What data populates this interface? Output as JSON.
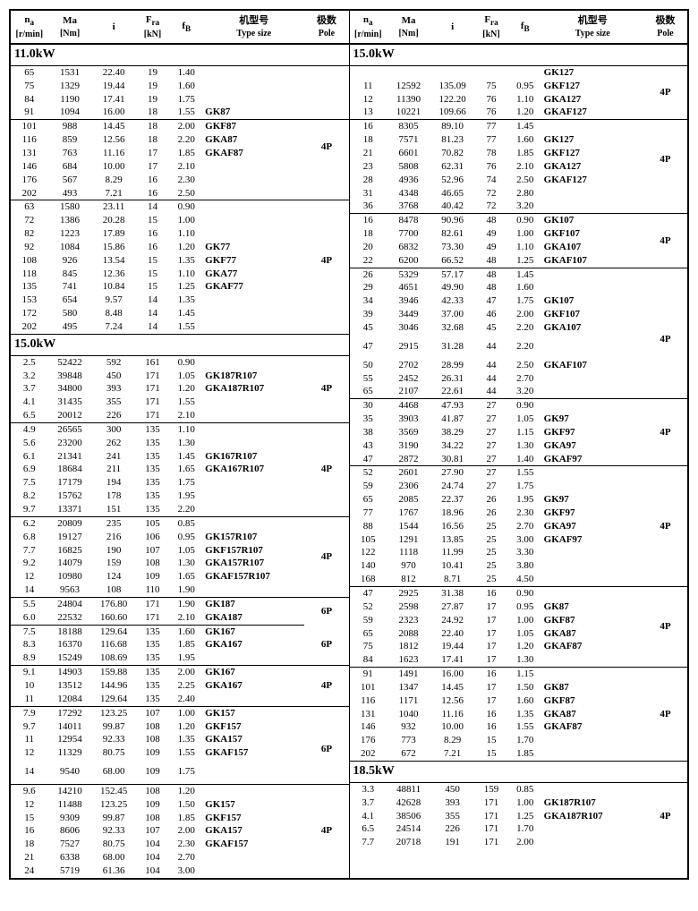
{
  "headers": {
    "na": "n<sub>a</sub>",
    "na_unit": "[r/min]",
    "ma": "Ma",
    "ma_unit": "[Nm]",
    "i": "i",
    "fra": "F<sub>ra</sub>",
    "fra_unit": "[kN]",
    "fb": "f<sub>B</sub>",
    "ts": "机型号",
    "ts2": "Type size",
    "pole": "极数",
    "pole2": "Pole"
  },
  "left": [
    {
      "section": "11.0kW"
    },
    {
      "r": [
        "65",
        "1531",
        "22.40",
        "19",
        "1.40",
        "",
        ""
      ]
    },
    {
      "r": [
        "75",
        "1329",
        "19.44",
        "19",
        "1.60",
        "",
        ""
      ]
    },
    {
      "r": [
        "84",
        "1190",
        "17.41",
        "19",
        "1.75",
        "",
        ""
      ]
    },
    {
      "r": [
        "91",
        "1094",
        "16.00",
        "18",
        "1.55",
        "GK87",
        ""
      ],
      "rule": 1
    },
    {
      "r": [
        "101",
        "988",
        "14.45",
        "18",
        "2.00",
        "GKF87",
        ""
      ],
      "pole": "4P",
      "poleSpan": 4
    },
    {
      "r": [
        "116",
        "859",
        "12.56",
        "18",
        "2.20",
        "GKA87",
        ""
      ]
    },
    {
      "r": [
        "131",
        "763",
        "11.16",
        "17",
        "1.85",
        "GKAF87",
        ""
      ]
    },
    {
      "r": [
        "146",
        "684",
        "10.00",
        "17",
        "2.10",
        "",
        ""
      ]
    },
    {
      "r": [
        "176",
        "567",
        "8.29",
        "16",
        "2.30",
        "",
        ""
      ]
    },
    {
      "r": [
        "202",
        "493",
        "7.21",
        "16",
        "2.50",
        "",
        ""
      ],
      "rule": 1
    },
    {
      "r": [
        "63",
        "1580",
        "23.11",
        "14",
        "0.90",
        "",
        ""
      ]
    },
    {
      "r": [
        "72",
        "1386",
        "20.28",
        "15",
        "1.00",
        "",
        ""
      ]
    },
    {
      "r": [
        "82",
        "1223",
        "17.89",
        "16",
        "1.10",
        "",
        ""
      ]
    },
    {
      "r": [
        "92",
        "1084",
        "15.86",
        "16",
        "1.20",
        "GK77",
        ""
      ]
    },
    {
      "r": [
        "108",
        "926",
        "13.54",
        "15",
        "1.35",
        "GKF77",
        ""
      ],
      "pole": "4P",
      "poleSpan": 1
    },
    {
      "r": [
        "118",
        "845",
        "12.36",
        "15",
        "1.10",
        "GKA77",
        ""
      ]
    },
    {
      "r": [
        "135",
        "741",
        "10.84",
        "15",
        "1.25",
        "GKAF77",
        ""
      ]
    },
    {
      "r": [
        "153",
        "654",
        "9.57",
        "14",
        "1.35",
        "",
        ""
      ]
    },
    {
      "r": [
        "172",
        "580",
        "8.48",
        "14",
        "1.45",
        "",
        ""
      ]
    },
    {
      "r": [
        "202",
        "495",
        "7.24",
        "14",
        "1.55",
        "",
        ""
      ]
    },
    {
      "section": "15.0kW"
    },
    {
      "r": [
        "2.5",
        "52422",
        "592",
        "161",
        "0.90",
        "",
        ""
      ]
    },
    {
      "r": [
        "3.2",
        "39848",
        "450",
        "171",
        "1.05",
        "GK187R107",
        ""
      ]
    },
    {
      "r": [
        "3.7",
        "34800",
        "393",
        "171",
        "1.20",
        "GKA187R107",
        ""
      ],
      "pole": "4P",
      "poleSpan": 1
    },
    {
      "r": [
        "4.1",
        "31435",
        "355",
        "171",
        "1.55",
        "",
        ""
      ]
    },
    {
      "r": [
        "6.5",
        "20012",
        "226",
        "171",
        "2.10",
        "",
        ""
      ],
      "rule": 1
    },
    {
      "r": [
        "4.9",
        "26565",
        "300",
        "135",
        "1.10",
        "",
        ""
      ]
    },
    {
      "r": [
        "5.6",
        "23200",
        "262",
        "135",
        "1.30",
        "",
        ""
      ]
    },
    {
      "r": [
        "6.1",
        "21341",
        "241",
        "135",
        "1.45",
        "GK167R107",
        ""
      ]
    },
    {
      "r": [
        "6.9",
        "18684",
        "211",
        "135",
        "1.65",
        "GKA167R107",
        ""
      ],
      "pole": "4P",
      "poleSpan": 1
    },
    {
      "r": [
        "7.5",
        "17179",
        "194",
        "135",
        "1.75",
        "",
        ""
      ]
    },
    {
      "r": [
        "8.2",
        "15762",
        "178",
        "135",
        "1.95",
        "",
        ""
      ]
    },
    {
      "r": [
        "9.7",
        "13371",
        "151",
        "135",
        "2.20",
        "",
        ""
      ],
      "rule": 1
    },
    {
      "r": [
        "6.2",
        "20809",
        "235",
        "105",
        "0.85",
        "",
        ""
      ]
    },
    {
      "r": [
        "6.8",
        "19127",
        "216",
        "106",
        "0.95",
        "GK157R107",
        ""
      ]
    },
    {
      "r": [
        "7.7",
        "16825",
        "190",
        "107",
        "1.05",
        "GKF157R107",
        ""
      ],
      "pole": "4P",
      "poleSpan": 2
    },
    {
      "r": [
        "9.2",
        "14079",
        "159",
        "108",
        "1.30",
        "GKA157R107",
        ""
      ]
    },
    {
      "r": [
        "12",
        "10980",
        "124",
        "109",
        "1.65",
        "GKAF157R107",
        ""
      ]
    },
    {
      "r": [
        "14",
        "9563",
        "108",
        "110",
        "1.90",
        "",
        ""
      ],
      "rule": 1
    },
    {
      "r": [
        "5.5",
        "24804",
        "176.80",
        "171",
        "1.90",
        "GK187",
        ""
      ],
      "pole": "6P",
      "poleSpan": 2
    },
    {
      "r": [
        "6.0",
        "22532",
        "160.60",
        "171",
        "2.10",
        "GKA187",
        ""
      ],
      "rule": 1
    },
    {
      "r": [
        "7.5",
        "18188",
        "129.64",
        "135",
        "1.60",
        "GK167",
        ""
      ]
    },
    {
      "r": [
        "8.3",
        "16370",
        "116.68",
        "135",
        "1.85",
        "GKA167",
        ""
      ],
      "pole": "6P",
      "poleSpan": 1
    },
    {
      "r": [
        "8.9",
        "15249",
        "108.69",
        "135",
        "1.95",
        "",
        ""
      ],
      "rule": 1
    },
    {
      "r": [
        "9.1",
        "14903",
        "159.88",
        "135",
        "2.00",
        "GK167",
        ""
      ]
    },
    {
      "r": [
        "10",
        "13512",
        "144.96",
        "135",
        "2.25",
        "GKA167",
        ""
      ],
      "pole": "4P",
      "poleSpan": 1
    },
    {
      "r": [
        "11",
        "12084",
        "129.64",
        "135",
        "2.40",
        "",
        ""
      ],
      "rule": 1
    },
    {
      "r": [
        "7.9",
        "17292",
        "123.25",
        "107",
        "1.00",
        "GK157",
        ""
      ]
    },
    {
      "r": [
        "9.7",
        "14011",
        "99.87",
        "108",
        "1.20",
        "GKF157",
        ""
      ]
    },
    {
      "r": [
        "11",
        "12954",
        "92.33",
        "108",
        "1.35",
        "GKA157",
        ""
      ],
      "pole": "6P",
      "poleSpan": 2
    },
    {
      "r": [
        "12",
        "11329",
        "80.75",
        "109",
        "1.55",
        "GKAF157",
        ""
      ],
      "pad": 1
    },
    {
      "r": [
        "14",
        "9540",
        "68.00",
        "109",
        "1.75",
        "",
        ""
      ],
      "rule": 1,
      "pad": 1
    },
    {
      "r": [
        "9.6",
        "14210",
        "152.45",
        "108",
        "1.20",
        "",
        ""
      ]
    },
    {
      "r": [
        "12",
        "11488",
        "123.25",
        "109",
        "1.50",
        "GK157",
        ""
      ]
    },
    {
      "r": [
        "15",
        "9309",
        "99.87",
        "108",
        "1.85",
        "GKF157",
        ""
      ]
    },
    {
      "r": [
        "16",
        "8606",
        "92.33",
        "107",
        "2.00",
        "GKA157",
        ""
      ],
      "pole": "4P",
      "poleSpan": 1
    },
    {
      "r": [
        "18",
        "7527",
        "80.75",
        "104",
        "2.30",
        "GKAF157",
        ""
      ]
    },
    {
      "r": [
        "21",
        "6338",
        "68.00",
        "104",
        "2.70",
        "",
        ""
      ]
    },
    {
      "r": [
        "24",
        "5719",
        "61.36",
        "104",
        "3.00",
        "",
        ""
      ]
    }
  ],
  "right": [
    {
      "section": "15.0kW"
    },
    {
      "r": [
        "",
        "",
        "",
        "",
        "",
        "GK127",
        ""
      ]
    },
    {
      "r": [
        "11",
        "12592",
        "135.09",
        "75",
        "0.95",
        "GKF127",
        ""
      ],
      "pole": "4P",
      "poleSpan": 2
    },
    {
      "r": [
        "12",
        "11390",
        "122.20",
        "76",
        "1.10",
        "GKA127",
        ""
      ]
    },
    {
      "r": [
        "13",
        "10221",
        "109.66",
        "76",
        "1.20",
        "GKAF127",
        ""
      ],
      "rule": 1
    },
    {
      "r": [
        "16",
        "8305",
        "89.10",
        "77",
        "1.45",
        "",
        ""
      ]
    },
    {
      "r": [
        "18",
        "7571",
        "81.23",
        "77",
        "1.60",
        "GK127",
        ""
      ]
    },
    {
      "r": [
        "21",
        "6601",
        "70.82",
        "78",
        "1.85",
        "GKF127",
        ""
      ],
      "pole": "4P",
      "poleSpan": 2
    },
    {
      "r": [
        "23",
        "5808",
        "62.31",
        "76",
        "2.10",
        "GKA127",
        ""
      ]
    },
    {
      "r": [
        "28",
        "4936",
        "52.96",
        "74",
        "2.50",
        "GKAF127",
        ""
      ]
    },
    {
      "r": [
        "31",
        "4348",
        "46.65",
        "72",
        "2.80",
        "",
        ""
      ]
    },
    {
      "r": [
        "36",
        "3768",
        "40.42",
        "72",
        "3.20",
        "",
        ""
      ],
      "rule": 1
    },
    {
      "r": [
        "16",
        "8478",
        "90.96",
        "48",
        "0.90",
        "GK107",
        ""
      ]
    },
    {
      "r": [
        "18",
        "7700",
        "82.61",
        "49",
        "1.00",
        "GKF107",
        ""
      ],
      "pole": "4P",
      "poleSpan": 2
    },
    {
      "r": [
        "20",
        "6832",
        "73.30",
        "49",
        "1.10",
        "GKA107",
        ""
      ]
    },
    {
      "r": [
        "22",
        "6200",
        "66.52",
        "48",
        "1.25",
        "GKAF107",
        ""
      ],
      "rule": 1
    },
    {
      "r": [
        "26",
        "5329",
        "57.17",
        "48",
        "1.45",
        "",
        ""
      ]
    },
    {
      "r": [
        "29",
        "4651",
        "49.90",
        "48",
        "1.60",
        "",
        ""
      ]
    },
    {
      "r": [
        "34",
        "3946",
        "42.33",
        "47",
        "1.75",
        "GK107",
        ""
      ]
    },
    {
      "r": [
        "39",
        "3449",
        "37.00",
        "46",
        "2.00",
        "GKF107",
        ""
      ]
    },
    {
      "r": [
        "45",
        "3046",
        "32.68",
        "45",
        "2.20",
        "GKA107",
        ""
      ],
      "pole": "4P",
      "poleSpan": 2,
      "pad": 1
    },
    {
      "r": [
        "47",
        "2915",
        "31.28",
        "44",
        "2.20",
        "",
        ""
      ],
      "pad": 1
    },
    {
      "r": [
        "50",
        "2702",
        "28.99",
        "44",
        "2.50",
        "GKAF107",
        ""
      ]
    },
    {
      "r": [
        "55",
        "2452",
        "26.31",
        "44",
        "2.70",
        "",
        ""
      ]
    },
    {
      "r": [
        "65",
        "2107",
        "22.61",
        "44",
        "3.20",
        "",
        ""
      ],
      "rule": 1
    },
    {
      "r": [
        "30",
        "4468",
        "47.93",
        "27",
        "0.90",
        "",
        ""
      ]
    },
    {
      "r": [
        "35",
        "3903",
        "41.87",
        "27",
        "1.05",
        "GK97",
        ""
      ]
    },
    {
      "r": [
        "38",
        "3569",
        "38.29",
        "27",
        "1.15",
        "GKF97",
        ""
      ],
      "pole": "4P",
      "poleSpan": 1
    },
    {
      "r": [
        "43",
        "3190",
        "34.22",
        "27",
        "1.30",
        "GKA97",
        ""
      ]
    },
    {
      "r": [
        "47",
        "2872",
        "30.81",
        "27",
        "1.40",
        "GKAF97",
        ""
      ],
      "rule": 1
    },
    {
      "r": [
        "52",
        "2601",
        "27.90",
        "27",
        "1.55",
        "",
        ""
      ]
    },
    {
      "r": [
        "59",
        "2306",
        "24.74",
        "27",
        "1.75",
        "",
        ""
      ]
    },
    {
      "r": [
        "65",
        "2085",
        "22.37",
        "26",
        "1.95",
        "GK97",
        ""
      ]
    },
    {
      "r": [
        "77",
        "1767",
        "18.96",
        "26",
        "2.30",
        "GKF97",
        ""
      ]
    },
    {
      "r": [
        "88",
        "1544",
        "16.56",
        "25",
        "2.70",
        "GKA97",
        ""
      ],
      "pole": "4P",
      "poleSpan": 1
    },
    {
      "r": [
        "105",
        "1291",
        "13.85",
        "25",
        "3.00",
        "GKAF97",
        ""
      ]
    },
    {
      "r": [
        "122",
        "1118",
        "11.99",
        "25",
        "3.30",
        "",
        ""
      ]
    },
    {
      "r": [
        "140",
        "970",
        "10.41",
        "25",
        "3.80",
        "",
        ""
      ]
    },
    {
      "r": [
        "168",
        "812",
        "8.71",
        "25",
        "4.50",
        "",
        ""
      ],
      "rule": 1
    },
    {
      "r": [
        "47",
        "2925",
        "31.38",
        "16",
        "0.90",
        "",
        ""
      ]
    },
    {
      "r": [
        "52",
        "2598",
        "27.87",
        "17",
        "0.95",
        "GK87",
        ""
      ]
    },
    {
      "r": [
        "59",
        "2323",
        "24.92",
        "17",
        "1.00",
        "GKF87",
        ""
      ],
      "pole": "4P",
      "poleSpan": 2
    },
    {
      "r": [
        "65",
        "2088",
        "22.40",
        "17",
        "1.05",
        "GKA87",
        ""
      ]
    },
    {
      "r": [
        "75",
        "1812",
        "19.44",
        "17",
        "1.20",
        "GKAF87",
        ""
      ]
    },
    {
      "r": [
        "84",
        "1623",
        "17.41",
        "17",
        "1.30",
        "",
        ""
      ],
      "rule": 1
    },
    {
      "r": [
        "91",
        "1491",
        "16.00",
        "16",
        "1.15",
        "",
        ""
      ]
    },
    {
      "r": [
        "101",
        "1347",
        "14.45",
        "17",
        "1.50",
        "GK87",
        ""
      ]
    },
    {
      "r": [
        "116",
        "1171",
        "12.56",
        "17",
        "1.60",
        "GKF87",
        ""
      ]
    },
    {
      "r": [
        "131",
        "1040",
        "11.16",
        "16",
        "1.35",
        "GKA87",
        ""
      ],
      "pole": "4P",
      "poleSpan": 1
    },
    {
      "r": [
        "146",
        "932",
        "10.00",
        "16",
        "1.55",
        "GKAF87",
        ""
      ]
    },
    {
      "r": [
        "176",
        "773",
        "8.29",
        "15",
        "1.70",
        "",
        ""
      ]
    },
    {
      "r": [
        "202",
        "672",
        "7.21",
        "15",
        "1.85",
        "",
        ""
      ]
    },
    {
      "section": "18.5kW"
    },
    {
      "r": [
        "3.3",
        "48811",
        "450",
        "159",
        "0.85",
        "",
        ""
      ]
    },
    {
      "r": [
        "3.7",
        "42628",
        "393",
        "171",
        "1.00",
        "GK187R107",
        ""
      ]
    },
    {
      "r": [
        "4.1",
        "38506",
        "355",
        "171",
        "1.25",
        "GKA187R107",
        ""
      ],
      "pole": "4P",
      "poleSpan": 1
    },
    {
      "r": [
        "6.5",
        "24514",
        "226",
        "171",
        "1.70",
        "",
        ""
      ]
    },
    {
      "r": [
        "7.7",
        "20718",
        "191",
        "171",
        "2.00",
        "",
        ""
      ]
    }
  ]
}
